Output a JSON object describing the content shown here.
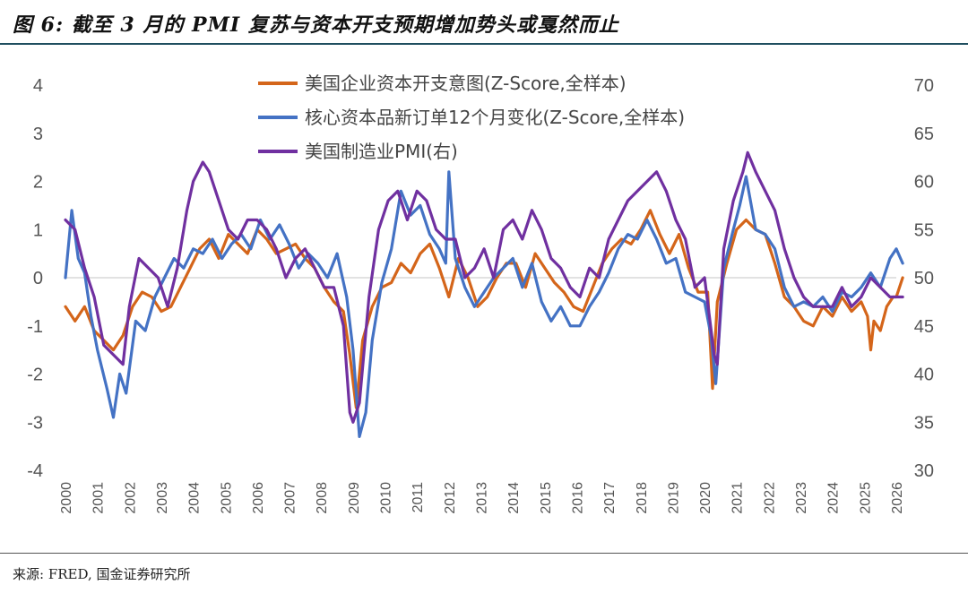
{
  "figure": {
    "title": "图 6: 截至 3 月的 PMI 复苏与资本开支预期增加势头或戛然而止",
    "source": "来源: FRED, 国金证券研究所"
  },
  "chart_data": {
    "type": "line",
    "x_ticks": [
      "2000",
      "2001",
      "2002",
      "2003",
      "2004",
      "2005",
      "2006",
      "2007",
      "2008",
      "2009",
      "2010",
      "2011",
      "2012",
      "2013",
      "2014",
      "2015",
      "2016",
      "2017",
      "2018",
      "2019",
      "2020",
      "2021",
      "2022",
      "2023",
      "2024",
      "2025",
      "2026"
    ],
    "y_left": {
      "range": [
        -4,
        4
      ],
      "ticks": [
        "4",
        "3",
        "2",
        "1",
        "0",
        "-1",
        "-2",
        "-3",
        "-4"
      ]
    },
    "y_right": {
      "range": [
        30,
        70
      ],
      "ticks": [
        "70",
        "65",
        "60",
        "55",
        "50",
        "45",
        "40",
        "35",
        "30"
      ]
    },
    "grid": false,
    "legend_position": "top-center",
    "series": [
      {
        "name": "美国企业资本开支意图(Z-Score,全样本)",
        "axis": "left",
        "color": "#d4651a",
        "x": [
          2000.0,
          2000.3,
          2000.6,
          2000.9,
          2001.2,
          2001.5,
          2001.8,
          2002.1,
          2002.4,
          2002.7,
          2003.0,
          2003.3,
          2003.6,
          2003.9,
          2004.2,
          2004.5,
          2004.8,
          2005.1,
          2005.4,
          2005.7,
          2006.0,
          2006.3,
          2006.6,
          2006.9,
          2007.2,
          2007.5,
          2007.8,
          2008.1,
          2008.4,
          2008.7,
          2008.9,
          2009.1,
          2009.3,
          2009.6,
          2009.9,
          2010.2,
          2010.5,
          2010.8,
          2011.1,
          2011.4,
          2011.7,
          2012.0,
          2012.3,
          2012.6,
          2012.9,
          2013.2,
          2013.5,
          2013.8,
          2014.1,
          2014.4,
          2014.7,
          2015.0,
          2015.3,
          2015.6,
          2015.9,
          2016.2,
          2016.5,
          2016.8,
          2017.1,
          2017.4,
          2017.7,
          2018.0,
          2018.3,
          2018.6,
          2018.9,
          2019.2,
          2019.5,
          2019.8,
          2020.1,
          2020.25,
          2020.4,
          2020.7,
          2021.0,
          2021.3,
          2021.6,
          2021.9,
          2022.2,
          2022.5,
          2022.8,
          2023.1,
          2023.4,
          2023.7,
          2024.0,
          2024.3,
          2024.6,
          2024.9,
          2025.1,
          2025.2,
          2025.3,
          2025.5,
          2025.7,
          2025.9,
          2026.0,
          2026.2
        ],
        "values": [
          -0.6,
          -0.9,
          -0.6,
          -1.1,
          -1.3,
          -1.5,
          -1.2,
          -0.6,
          -0.3,
          -0.4,
          -0.7,
          -0.6,
          -0.2,
          0.2,
          0.6,
          0.8,
          0.4,
          0.9,
          0.7,
          0.5,
          1.0,
          0.8,
          0.5,
          0.6,
          0.7,
          0.4,
          0.2,
          -0.2,
          -0.5,
          -0.7,
          -1.6,
          -2.7,
          -1.3,
          -0.6,
          -0.2,
          -0.1,
          0.3,
          0.1,
          0.5,
          0.7,
          0.2,
          -0.4,
          0.4,
          0.0,
          -0.6,
          -0.4,
          0.0,
          0.3,
          0.3,
          -0.2,
          0.5,
          0.2,
          -0.1,
          -0.3,
          -0.6,
          -0.7,
          -0.2,
          0.3,
          0.6,
          0.8,
          0.7,
          1.0,
          1.4,
          0.9,
          0.5,
          0.9,
          0.2,
          -0.3,
          -0.3,
          -2.3,
          -0.5,
          0.3,
          1.0,
          1.2,
          1.0,
          0.9,
          0.3,
          -0.4,
          -0.6,
          -0.9,
          -1.0,
          -0.6,
          -0.8,
          -0.4,
          -0.7,
          -0.5,
          -0.8,
          -1.5,
          -0.9,
          -1.1,
          -0.6,
          -0.4,
          -0.4,
          0.0
        ]
      },
      {
        "name": "核心资本品新订单12个月变化(Z-Score,全样本)",
        "axis": "left",
        "color": "#4472c4",
        "x": [
          2000.0,
          2000.2,
          2000.4,
          2000.6,
          2000.8,
          2001.0,
          2001.3,
          2001.5,
          2001.7,
          2001.9,
          2002.2,
          2002.5,
          2002.8,
          2003.1,
          2003.4,
          2003.7,
          2004.0,
          2004.3,
          2004.6,
          2004.9,
          2005.2,
          2005.5,
          2005.8,
          2006.1,
          2006.4,
          2006.7,
          2007.0,
          2007.3,
          2007.6,
          2007.9,
          2008.2,
          2008.5,
          2008.8,
          2009.0,
          2009.2,
          2009.4,
          2009.6,
          2009.9,
          2010.2,
          2010.5,
          2010.8,
          2011.1,
          2011.4,
          2011.7,
          2011.9,
          2012.0,
          2012.2,
          2012.5,
          2012.8,
          2013.1,
          2013.4,
          2013.7,
          2014.0,
          2014.3,
          2014.6,
          2014.9,
          2015.2,
          2015.5,
          2015.8,
          2016.1,
          2016.4,
          2016.7,
          2017.0,
          2017.3,
          2017.6,
          2017.9,
          2018.2,
          2018.5,
          2018.8,
          2019.1,
          2019.4,
          2019.7,
          2020.0,
          2020.2,
          2020.35,
          2020.6,
          2020.9,
          2021.1,
          2021.3,
          2021.6,
          2021.9,
          2022.2,
          2022.5,
          2022.8,
          2023.1,
          2023.4,
          2023.7,
          2024.0,
          2024.3,
          2024.6,
          2024.9,
          2025.2,
          2025.5,
          2025.8,
          2026.0,
          2026.2
        ],
        "values": [
          0.0,
          1.4,
          0.4,
          0.1,
          -0.8,
          -1.5,
          -2.3,
          -2.9,
          -2.0,
          -2.4,
          -0.9,
          -1.1,
          -0.4,
          0.0,
          0.4,
          0.2,
          0.6,
          0.5,
          0.8,
          0.4,
          0.7,
          0.9,
          0.6,
          1.2,
          0.8,
          1.1,
          0.7,
          0.2,
          0.5,
          0.3,
          0.0,
          0.5,
          -0.4,
          -1.5,
          -3.3,
          -2.8,
          -1.3,
          -0.1,
          0.6,
          1.8,
          1.3,
          1.5,
          0.9,
          0.6,
          0.3,
          2.2,
          0.4,
          -0.2,
          -0.6,
          -0.3,
          0.0,
          0.2,
          0.4,
          -0.2,
          0.3,
          -0.5,
          -0.9,
          -0.6,
          -1.0,
          -1.0,
          -0.6,
          -0.3,
          0.1,
          0.6,
          0.9,
          0.8,
          1.2,
          0.8,
          0.3,
          0.4,
          -0.3,
          -0.4,
          -0.5,
          -1.2,
          -2.2,
          0.2,
          1.0,
          1.5,
          2.1,
          1.0,
          0.9,
          0.6,
          -0.2,
          -0.6,
          -0.5,
          -0.6,
          -0.4,
          -0.7,
          -0.3,
          -0.4,
          -0.2,
          0.1,
          -0.2,
          0.4,
          0.6,
          0.3
        ]
      },
      {
        "name": "美国制造业PMI(右)",
        "axis": "right",
        "color": "#7030a0",
        "x": [
          2000.0,
          2000.3,
          2000.6,
          2000.9,
          2001.2,
          2001.5,
          2001.8,
          2002.0,
          2002.3,
          2002.6,
          2002.9,
          2003.2,
          2003.5,
          2003.8,
          2004.0,
          2004.3,
          2004.5,
          2004.8,
          2005.1,
          2005.4,
          2005.7,
          2006.0,
          2006.3,
          2006.6,
          2006.9,
          2007.2,
          2007.5,
          2007.8,
          2008.1,
          2008.4,
          2008.7,
          2008.9,
          2009.0,
          2009.2,
          2009.5,
          2009.8,
          2010.1,
          2010.4,
          2010.7,
          2011.0,
          2011.3,
          2011.6,
          2011.9,
          2012.2,
          2012.5,
          2012.8,
          2013.1,
          2013.4,
          2013.7,
          2014.0,
          2014.3,
          2014.6,
          2014.9,
          2015.2,
          2015.5,
          2015.8,
          2016.1,
          2016.4,
          2016.7,
          2017.0,
          2017.3,
          2017.6,
          2017.9,
          2018.2,
          2018.5,
          2018.8,
          2019.1,
          2019.4,
          2019.7,
          2020.0,
          2020.3,
          2020.4,
          2020.6,
          2020.9,
          2021.2,
          2021.35,
          2021.6,
          2021.9,
          2022.2,
          2022.5,
          2022.8,
          2023.1,
          2023.4,
          2023.7,
          2024.0,
          2024.3,
          2024.6,
          2024.9,
          2025.2,
          2025.5,
          2025.8,
          2026.0,
          2026.2
        ],
        "values": [
          56,
          55,
          51,
          48,
          43,
          42,
          41,
          47,
          52,
          51,
          50,
          47,
          51,
          57,
          60,
          62,
          61,
          58,
          55,
          54,
          56,
          56,
          55,
          53,
          50,
          52,
          53,
          51,
          49,
          49,
          45,
          36,
          35,
          37,
          48,
          55,
          58,
          59,
          56,
          59,
          58,
          55,
          54,
          54,
          50,
          51,
          53,
          50,
          55,
          56,
          54,
          57,
          55,
          52,
          51,
          49,
          48,
          51,
          50,
          54,
          56,
          58,
          59,
          60,
          61,
          59,
          56,
          54,
          49,
          50,
          42,
          41,
          53,
          58,
          61,
          63,
          61,
          59,
          57,
          53,
          50,
          48,
          47,
          47,
          47,
          49,
          47,
          48,
          50,
          49,
          48,
          48,
          48
        ]
      }
    ]
  }
}
